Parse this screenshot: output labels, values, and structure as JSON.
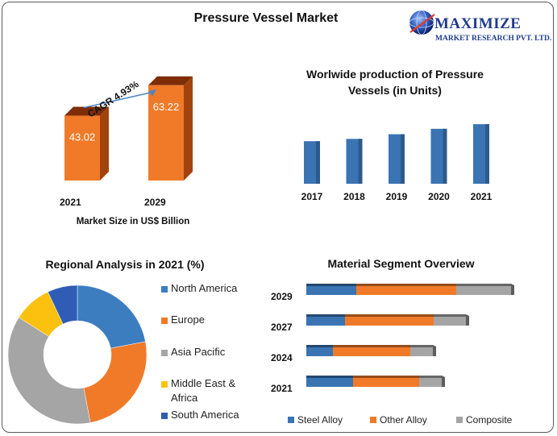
{
  "title": "Pressure Vessel Market",
  "logo": {
    "brand": "MAXIMIZE",
    "subtitle": "MARKET RESEARCH PVT. LTD.",
    "icon": "globe-icon"
  },
  "colors": {
    "orange": "#f07a28",
    "blue": "#3c7dc0",
    "gray": "#a5a5a5",
    "yellow": "#fcc10f",
    "dark_blue": "#2f5db5",
    "steel": "#3a74b3"
  },
  "chart_data": [
    {
      "type": "bar",
      "categories": [
        "2021",
        "2029"
      ],
      "values": [
        43.02,
        63.22
      ],
      "xlabel": "Market Size in US$ Billion",
      "annotation": "CAGR 4.93%"
    },
    {
      "type": "bar",
      "title": "Worlwide production of Pressure Vessels (in Units)",
      "categories": [
        "2017",
        "2018",
        "2019",
        "2020",
        "2021"
      ],
      "values": [
        55,
        58,
        64,
        71,
        77
      ]
    },
    {
      "type": "pie",
      "title": "Regional Analysis in 2021 (%)",
      "categories": [
        "North America",
        "Europe",
        "Asia Pacific",
        "Middle East & Africa",
        "South America"
      ],
      "values": [
        22,
        25,
        37,
        9,
        7
      ]
    },
    {
      "type": "bar",
      "orientation": "horizontal",
      "stacked": true,
      "title": "Material Segment Overview",
      "categories": [
        "2029",
        "2027",
        "2024",
        "2021"
      ],
      "series": [
        {
          "name": "Steel Alloy",
          "values": [
            62,
            48,
            33,
            58
          ]
        },
        {
          "name": "Other Alloy",
          "values": [
            124,
            110,
            96,
            82
          ]
        },
        {
          "name": "Composite",
          "values": [
            68,
            40,
            28,
            28
          ]
        }
      ]
    }
  ]
}
